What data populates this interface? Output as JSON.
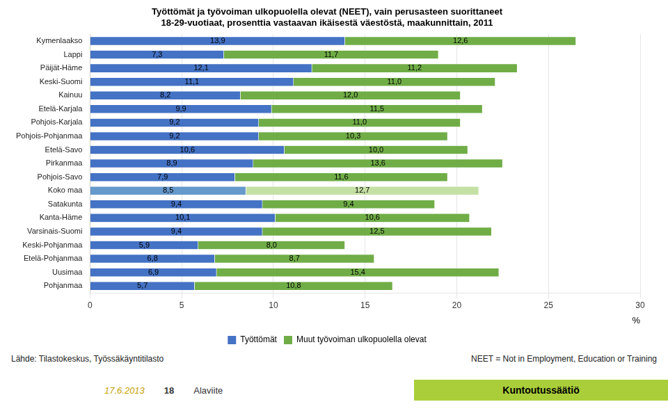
{
  "chart_data": {
    "type": "bar",
    "orientation": "horizontal",
    "stacked": true,
    "data_labels": true,
    "grid": true,
    "legend": "bottom",
    "title": "Työttömät ja työvoiman ulkopuolella olevat (NEET), vain perusasteen suorittaneet",
    "subtitle": "18-29-vuotiaat, prosenttia vastaavan ikäisestä väestöstä, maakunnittain, 2011",
    "xlabel": "%",
    "categories": [
      "Kymenlaakso",
      "Lappi",
      "Päijät-Häme",
      "Keski-Suomi",
      "Kainuu",
      "Etelä-Karjala",
      "Pohjois-Karjala",
      "Pohjois-Pohjanmaa",
      "Etelä-Savo",
      "Pirkanmaa",
      "Pohjois-Savo",
      "Koko maa",
      "Satakunta",
      "Kanta-Häme",
      "Varsinais-Suomi",
      "Keski-Pohjanmaa",
      "Etelä-Pohjanmaa",
      "Uusimaa",
      "Pohjanmaa"
    ],
    "series": [
      {
        "name": "Työttömät",
        "color": "#4472C4",
        "colors": [
          "#4472C4",
          "#4472C4",
          "#4472C4",
          "#4472C4",
          "#4472C4",
          "#4472C4",
          "#4472C4",
          "#4472C4",
          "#4472C4",
          "#4472C4",
          "#4472C4",
          "#6699CC",
          "#4472C4",
          "#4472C4",
          "#4472C4",
          "#4472C4",
          "#4472C4",
          "#4472C4",
          "#4472C4"
        ],
        "values": [
          13.9,
          7.3,
          12.1,
          11.1,
          8.2,
          9.9,
          9.2,
          9.2,
          10.6,
          8.9,
          7.9,
          8.5,
          9.4,
          10.1,
          9.4,
          5.9,
          6.8,
          6.9,
          5.7
        ],
        "value_labels": [
          "13,9",
          "7,3",
          "12,1",
          "11,1",
          "8,2",
          "9,9",
          "9,2",
          "9,2",
          "10,6",
          "8,9",
          "7,9",
          "8,5",
          "9,4",
          "10,1",
          "9,4",
          "5,9",
          "6,8",
          "6,9",
          "5,7"
        ]
      },
      {
        "name": "Muut työvoiman ulkopuolella olevat",
        "color": "#70AD47",
        "colors": [
          "#70AD47",
          "#70AD47",
          "#70AD47",
          "#70AD47",
          "#70AD47",
          "#70AD47",
          "#70AD47",
          "#70AD47",
          "#70AD47",
          "#70AD47",
          "#70AD47",
          "#C5E0A5",
          "#70AD47",
          "#70AD47",
          "#70AD47",
          "#70AD47",
          "#70AD47",
          "#70AD47",
          "#70AD47"
        ],
        "values": [
          12.6,
          11.7,
          11.2,
          11.0,
          12.0,
          11.5,
          11.0,
          10.3,
          10.0,
          13.6,
          11.6,
          12.7,
          9.4,
          10.6,
          12.5,
          8.0,
          8.7,
          15.4,
          10.8
        ],
        "value_labels": [
          "12,6",
          "11,7",
          "11,2",
          "11,0",
          "12,0",
          "11,5",
          "11,0",
          "10,3",
          "10,0",
          "13,6",
          "11,6",
          "12,7",
          "9,4",
          "10,6",
          "12,5",
          "8,0",
          "8,7",
          "15,4",
          "10,8"
        ]
      }
    ],
    "xlim": [
      0,
      30
    ],
    "xticks": [
      0,
      5,
      10,
      15,
      20,
      25,
      30
    ],
    "annotations": [
      {
        "text": "Lähde: Tilastokeskus, Työssäkäyntitilasto"
      },
      {
        "text": "NEET = Not in Employment, Education or Training"
      },
      {
        "text": "17.6.2013"
      },
      {
        "text": "18"
      },
      {
        "text": "Alaviite"
      },
      {
        "text": "Kuntoutussäätiö"
      }
    ]
  }
}
